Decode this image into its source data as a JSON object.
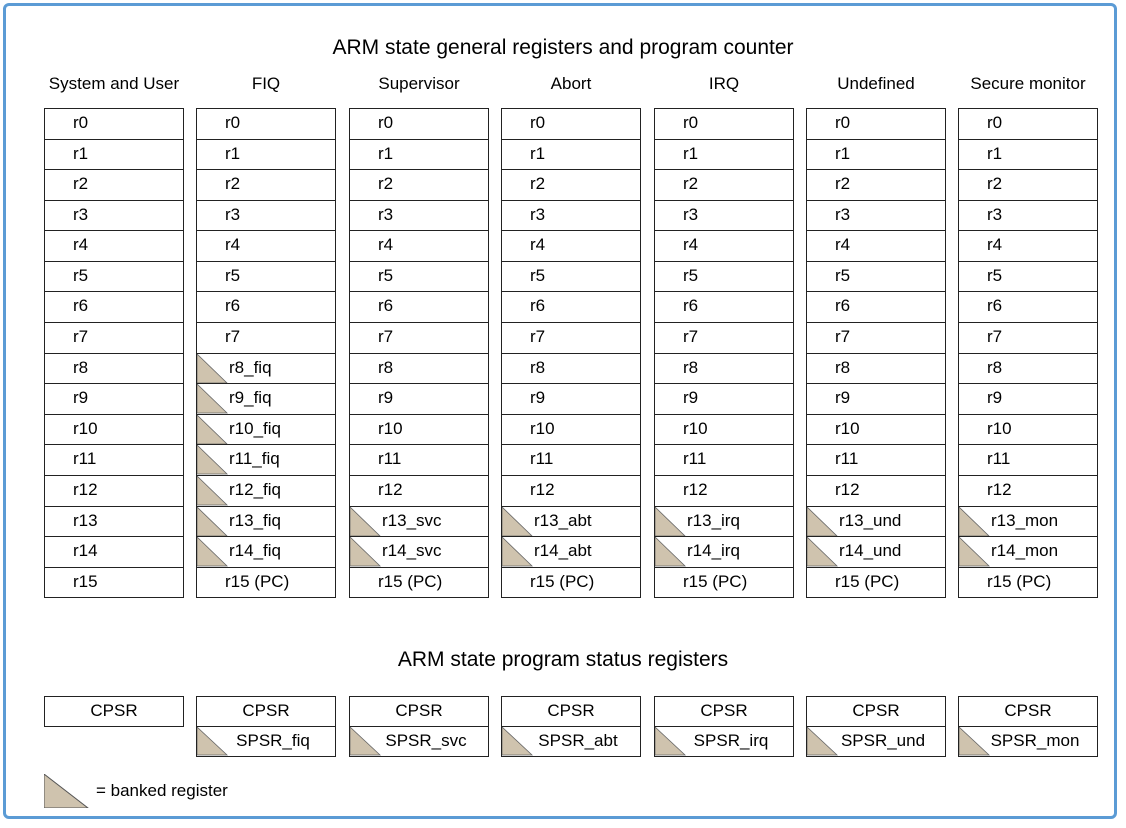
{
  "titles": {
    "general": "ARM state general registers and program counter",
    "status": "ARM state program status registers"
  },
  "modes": [
    {
      "name": "System and User",
      "registers": [
        "r0",
        "r1",
        "r2",
        "r3",
        "r4",
        "r5",
        "r6",
        "r7",
        "r8",
        "r9",
        "r10",
        "r11",
        "r12",
        "r13",
        "r14",
        "r15"
      ],
      "banked": [],
      "psr": [
        "CPSR"
      ]
    },
    {
      "name": "FIQ",
      "registers": [
        "r0",
        "r1",
        "r2",
        "r3",
        "r4",
        "r5",
        "r6",
        "r7",
        "r8_fiq",
        "r9_fiq",
        "r10_fiq",
        "r11_fiq",
        "r12_fiq",
        "r13_fiq",
        "r14_fiq",
        "r15 (PC)"
      ],
      "banked": [
        8,
        9,
        10,
        11,
        12,
        13,
        14
      ],
      "psr": [
        "CPSR",
        "SPSR_fiq"
      ]
    },
    {
      "name": "Supervisor",
      "registers": [
        "r0",
        "r1",
        "r2",
        "r3",
        "r4",
        "r5",
        "r6",
        "r7",
        "r8",
        "r9",
        "r10",
        "r11",
        "r12",
        "r13_svc",
        "r14_svc",
        "r15 (PC)"
      ],
      "banked": [
        13,
        14
      ],
      "psr": [
        "CPSR",
        "SPSR_svc"
      ]
    },
    {
      "name": "Abort",
      "registers": [
        "r0",
        "r1",
        "r2",
        "r3",
        "r4",
        "r5",
        "r6",
        "r7",
        "r8",
        "r9",
        "r10",
        "r11",
        "r12",
        "r13_abt",
        "r14_abt",
        "r15 (PC)"
      ],
      "banked": [
        13,
        14
      ],
      "psr": [
        "CPSR",
        "SPSR_abt"
      ]
    },
    {
      "name": "IRQ",
      "registers": [
        "r0",
        "r1",
        "r2",
        "r3",
        "r4",
        "r5",
        "r6",
        "r7",
        "r8",
        "r9",
        "r10",
        "r11",
        "r12",
        "r13_irq",
        "r14_irq",
        "r15 (PC)"
      ],
      "banked": [
        13,
        14
      ],
      "psr": [
        "CPSR",
        "SPSR_irq"
      ]
    },
    {
      "name": "Undefined",
      "registers": [
        "r0",
        "r1",
        "r2",
        "r3",
        "r4",
        "r5",
        "r6",
        "r7",
        "r8",
        "r9",
        "r10",
        "r11",
        "r12",
        "r13_und",
        "r14_und",
        "r15 (PC)"
      ],
      "banked": [
        13,
        14
      ],
      "psr": [
        "CPSR",
        "SPSR_und"
      ]
    },
    {
      "name": "Secure monitor",
      "registers": [
        "r0",
        "r1",
        "r2",
        "r3",
        "r4",
        "r5",
        "r6",
        "r7",
        "r8",
        "r9",
        "r10",
        "r11",
        "r12",
        "r13_mon",
        "r14_mon",
        "r15 (PC)"
      ],
      "banked": [
        13,
        14
      ],
      "psr": [
        "CPSR",
        "SPSR_mon"
      ]
    }
  ],
  "legend": {
    "label": "= banked register"
  },
  "colors": {
    "banked_fill": "#cfc3ae",
    "border": "#222222",
    "frame": "#5b9bd5"
  }
}
